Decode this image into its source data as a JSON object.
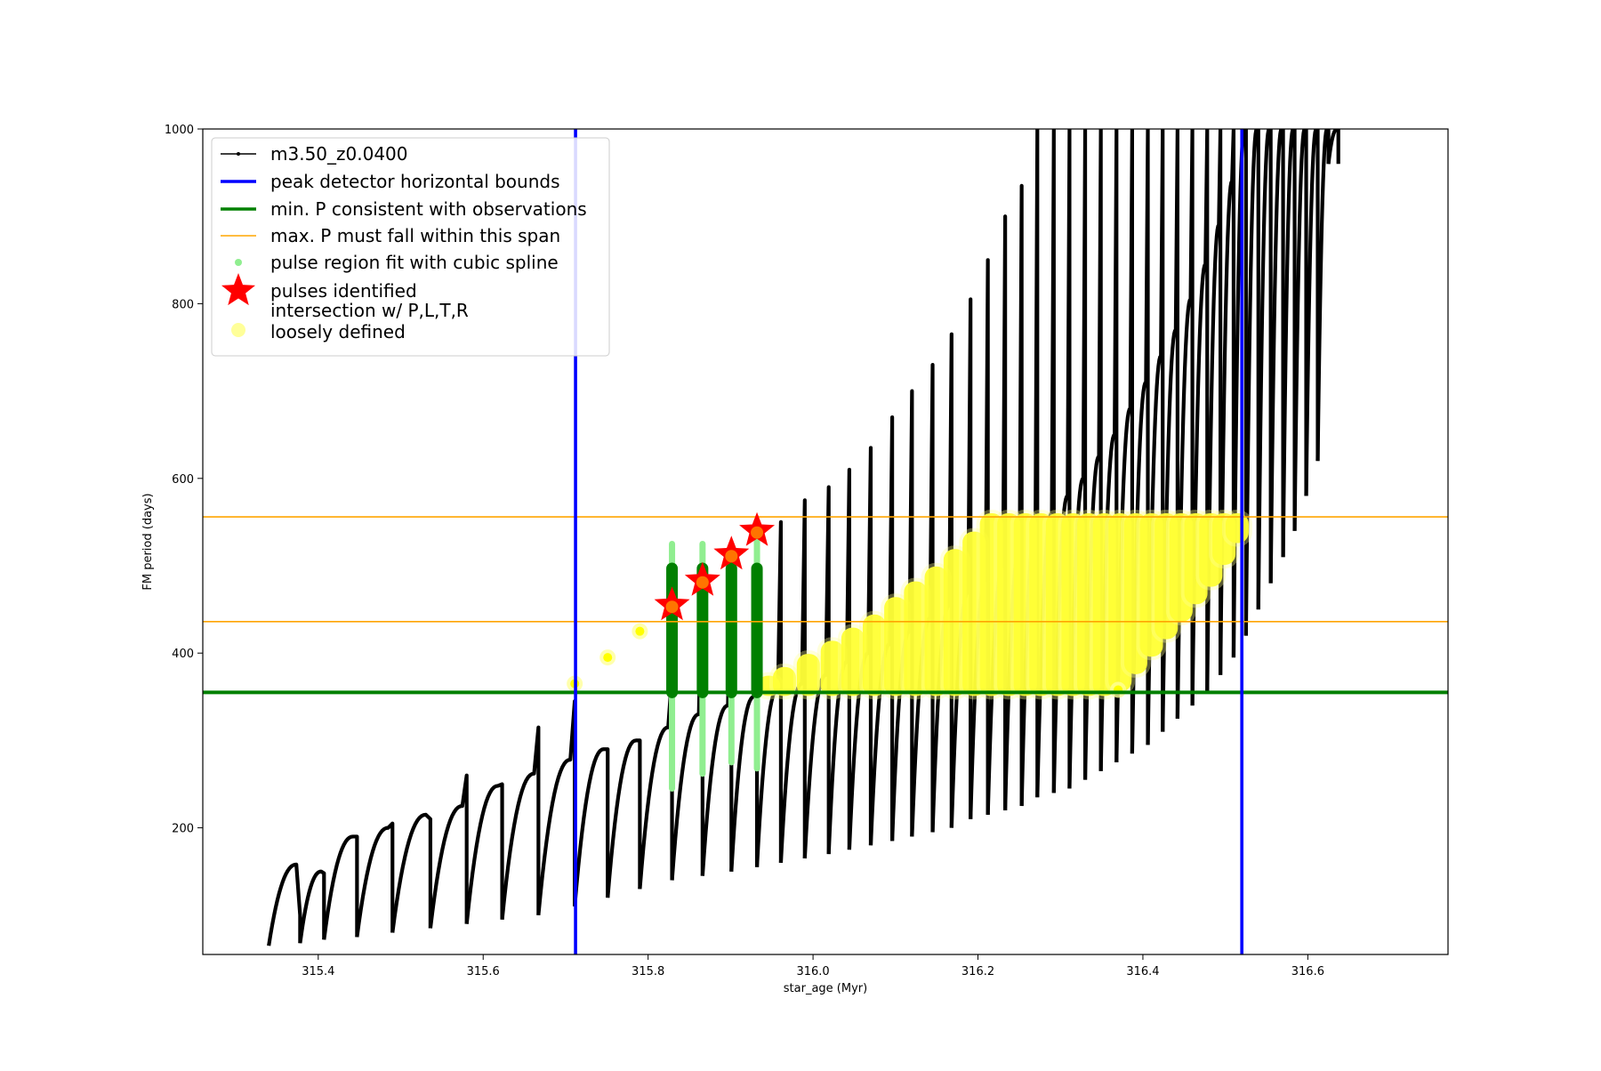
{
  "chart_data": {
    "type": "scatter",
    "title": "",
    "xlabel": "star_age (Myr)",
    "ylabel": "FM period (days)",
    "xlim": [
      315.26,
      316.77
    ],
    "ylim": [
      55,
      1000
    ],
    "xticks": [
      315.4,
      315.6,
      315.8,
      316.0,
      316.2,
      316.4,
      316.6
    ],
    "xtick_labels": [
      "315.4",
      "315.6",
      "315.8",
      "316.0",
      "316.2",
      "316.4",
      "316.6"
    ],
    "yticks": [
      200,
      400,
      600,
      800,
      1000
    ],
    "ytick_labels": [
      "200",
      "400",
      "600",
      "800",
      "1000"
    ],
    "grid": false,
    "legend_position": "upper-left",
    "legend": [
      {
        "label": "m3.50_z0.0400",
        "kind": "line-marker",
        "color": "#000000"
      },
      {
        "label": "peak detector horizontal bounds",
        "kind": "line",
        "color": "#0000ff"
      },
      {
        "label": "min. P consistent with observations",
        "kind": "line",
        "color": "#008000"
      },
      {
        "label": "max. P must fall within this span",
        "kind": "line",
        "color": "#ffa500"
      },
      {
        "label": "pulse region fit with cubic spline",
        "kind": "dot",
        "color": "#90ee90"
      },
      {
        "label": "pulses identified",
        "kind": "star",
        "color": "#ff0000"
      },
      {
        "label": "intersection w/ P,L,T,R",
        "label2": "loosely defined",
        "kind": "dot",
        "color": "#ffff99"
      }
    ],
    "vertical_lines": [
      {
        "x": 315.712,
        "color": "#0000ff",
        "role": "peak detector horizontal bounds"
      },
      {
        "x": 316.52,
        "color": "#0000ff",
        "role": "peak detector horizontal bounds"
      }
    ],
    "horizontal_lines": [
      {
        "y": 355,
        "color": "#008000",
        "role": "min. P consistent with observations"
      },
      {
        "y": 436,
        "color": "#ffa500",
        "role": "max. P span lower"
      },
      {
        "y": 556,
        "color": "#ffa500",
        "role": "max. P span upper"
      }
    ],
    "pulses_identified": [
      {
        "x": 315.829,
        "y": 455
      },
      {
        "x": 315.866,
        "y": 483
      },
      {
        "x": 315.901,
        "y": 513
      },
      {
        "x": 315.932,
        "y": 540
      }
    ],
    "series": [
      {
        "name": "m3.50_z0.0400",
        "color": "#000000",
        "description_cycles": "each cycle: start x, trough y, peak y, spike max y",
        "cycles": [
          [
            315.34,
            65,
            158,
            100
          ],
          [
            315.378,
            68,
            150,
            148
          ],
          [
            315.407,
            72,
            190,
            190
          ],
          [
            315.447,
            75,
            200,
            205
          ],
          [
            315.49,
            80,
            215,
            210
          ],
          [
            315.536,
            85,
            225,
            260
          ],
          [
            315.58,
            90,
            248,
            250
          ],
          [
            315.623,
            95,
            262,
            315
          ],
          [
            315.667,
            100,
            278,
            345
          ],
          [
            315.711,
            110,
            290,
            290
          ],
          [
            315.751,
            120,
            300,
            300
          ],
          [
            315.79,
            130,
            315,
            375
          ],
          [
            315.829,
            140,
            330,
            525
          ],
          [
            315.866,
            145,
            340,
            525
          ],
          [
            315.901,
            150,
            350,
            510
          ],
          [
            315.932,
            155,
            360,
            550
          ],
          [
            315.961,
            160,
            365,
            575
          ],
          [
            315.99,
            165,
            375,
            590
          ],
          [
            316.019,
            170,
            390,
            610
          ],
          [
            316.044,
            175,
            400,
            635
          ],
          [
            316.07,
            180,
            410,
            670
          ],
          [
            316.096,
            185,
            425,
            700
          ],
          [
            316.12,
            190,
            440,
            730
          ],
          [
            316.145,
            195,
            455,
            765
          ],
          [
            316.168,
            200,
            470,
            805
          ],
          [
            316.191,
            210,
            485,
            850
          ],
          [
            316.212,
            215,
            500,
            900
          ],
          [
            316.233,
            220,
            520,
            935
          ],
          [
            316.253,
            225,
            540,
            1000
          ],
          [
            316.272,
            235,
            560,
            1000
          ],
          [
            316.292,
            240,
            580,
            1000
          ],
          [
            316.311,
            245,
            600,
            1000
          ],
          [
            316.33,
            255,
            625,
            1000
          ],
          [
            316.349,
            265,
            650,
            1000
          ],
          [
            316.368,
            275,
            680,
            1000
          ],
          [
            316.387,
            285,
            710,
            1000
          ],
          [
            316.406,
            295,
            740,
            1000
          ],
          [
            316.424,
            310,
            770,
            1000
          ],
          [
            316.442,
            325,
            805,
            1000
          ],
          [
            316.46,
            340,
            845,
            1000
          ],
          [
            316.478,
            355,
            890,
            1000
          ],
          [
            316.494,
            375,
            940,
            1000
          ],
          [
            316.51,
            395,
            1000,
            1000
          ],
          [
            316.525,
            420,
            1000,
            1000
          ],
          [
            316.54,
            450,
            1000,
            1000
          ],
          [
            316.555,
            480,
            1000,
            1000
          ],
          [
            316.57,
            510,
            1000,
            1000
          ],
          [
            316.584,
            540,
            1000,
            1000
          ],
          [
            316.598,
            580,
            1000,
            1000
          ],
          [
            316.612,
            620,
            1000,
            1000
          ],
          [
            316.625,
            960,
            1000,
            1000
          ]
        ]
      },
      {
        "name": "pulse region fit with cubic spline",
        "color": "#90ee90",
        "segments": [
          {
            "x": 315.829,
            "y0": 245,
            "y1": 525
          },
          {
            "x": 315.866,
            "y0": 262,
            "y1": 525
          },
          {
            "x": 315.901,
            "y0": 275,
            "y1": 510
          },
          {
            "x": 315.932,
            "y0": 268,
            "y1": 550
          }
        ]
      },
      {
        "name": "pulse regions (dark)",
        "color": "#008000",
        "segments": [
          {
            "x": 315.829,
            "y0": 355,
            "y1": 497
          },
          {
            "x": 315.866,
            "y0": 355,
            "y1": 497
          },
          {
            "x": 315.901,
            "y0": 355,
            "y1": 497
          },
          {
            "x": 315.932,
            "y0": 355,
            "y1": 497
          }
        ]
      },
      {
        "name": "intersection w/ P,L,T,R loosely defined",
        "color": "#ffff00",
        "isolated_points": [
          {
            "x": 315.711,
            "y": 365
          },
          {
            "x": 315.751,
            "y": 395
          },
          {
            "x": 315.79,
            "y": 425
          },
          {
            "x": 316.37,
            "y": 358
          }
        ],
        "bands": [
          [
            315.942,
            355,
            370
          ],
          [
            315.961,
            355,
            380
          ],
          [
            315.99,
            355,
            395
          ],
          [
            316.019,
            355,
            410
          ],
          [
            316.044,
            355,
            425
          ],
          [
            316.07,
            355,
            440
          ],
          [
            316.096,
            355,
            460
          ],
          [
            316.12,
            355,
            478
          ],
          [
            316.145,
            355,
            495
          ],
          [
            316.168,
            355,
            515
          ],
          [
            316.191,
            355,
            535
          ],
          [
            316.212,
            355,
            556
          ],
          [
            316.233,
            355,
            556
          ],
          [
            316.253,
            355,
            556
          ],
          [
            316.272,
            355,
            556
          ],
          [
            316.292,
            355,
            556
          ],
          [
            316.311,
            355,
            556
          ],
          [
            316.33,
            355,
            556
          ],
          [
            316.349,
            355,
            556
          ],
          [
            316.368,
            360,
            556
          ],
          [
            316.387,
            380,
            556
          ],
          [
            316.406,
            400,
            556
          ],
          [
            316.424,
            420,
            556
          ],
          [
            316.442,
            440,
            556
          ],
          [
            316.46,
            460,
            556
          ],
          [
            316.478,
            480,
            556
          ],
          [
            316.494,
            505,
            556
          ],
          [
            316.51,
            530,
            556
          ]
        ]
      }
    ]
  }
}
